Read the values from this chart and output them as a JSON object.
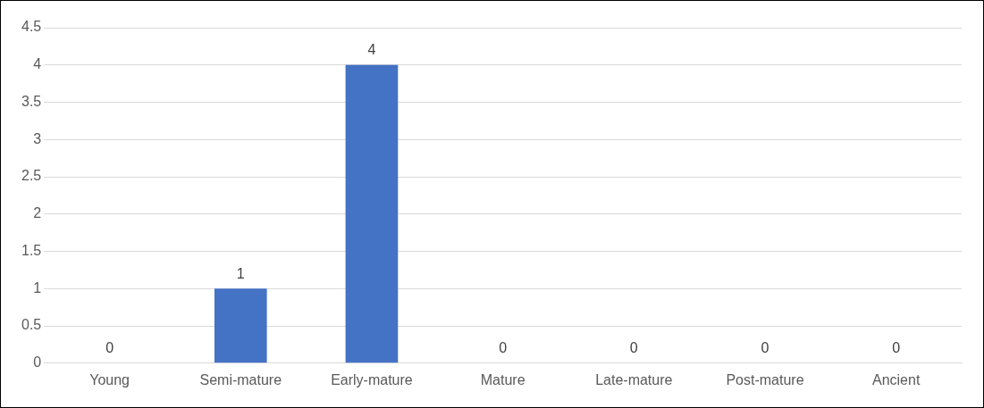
{
  "chart_data": {
    "type": "bar",
    "categories": [
      "Young",
      "Semi-mature",
      "Early-mature",
      "Mature",
      "Late-mature",
      "Post-mature",
      "Ancient"
    ],
    "values": [
      0,
      1,
      4,
      0,
      0,
      0,
      0
    ],
    "color": "#4472c4",
    "ylim": [
      0,
      4.5
    ],
    "yticks": [
      0,
      0.5,
      1,
      1.5,
      2,
      2.5,
      3,
      3.5,
      4,
      4.5
    ],
    "grid": "y",
    "legend": false,
    "data_labels": true
  }
}
